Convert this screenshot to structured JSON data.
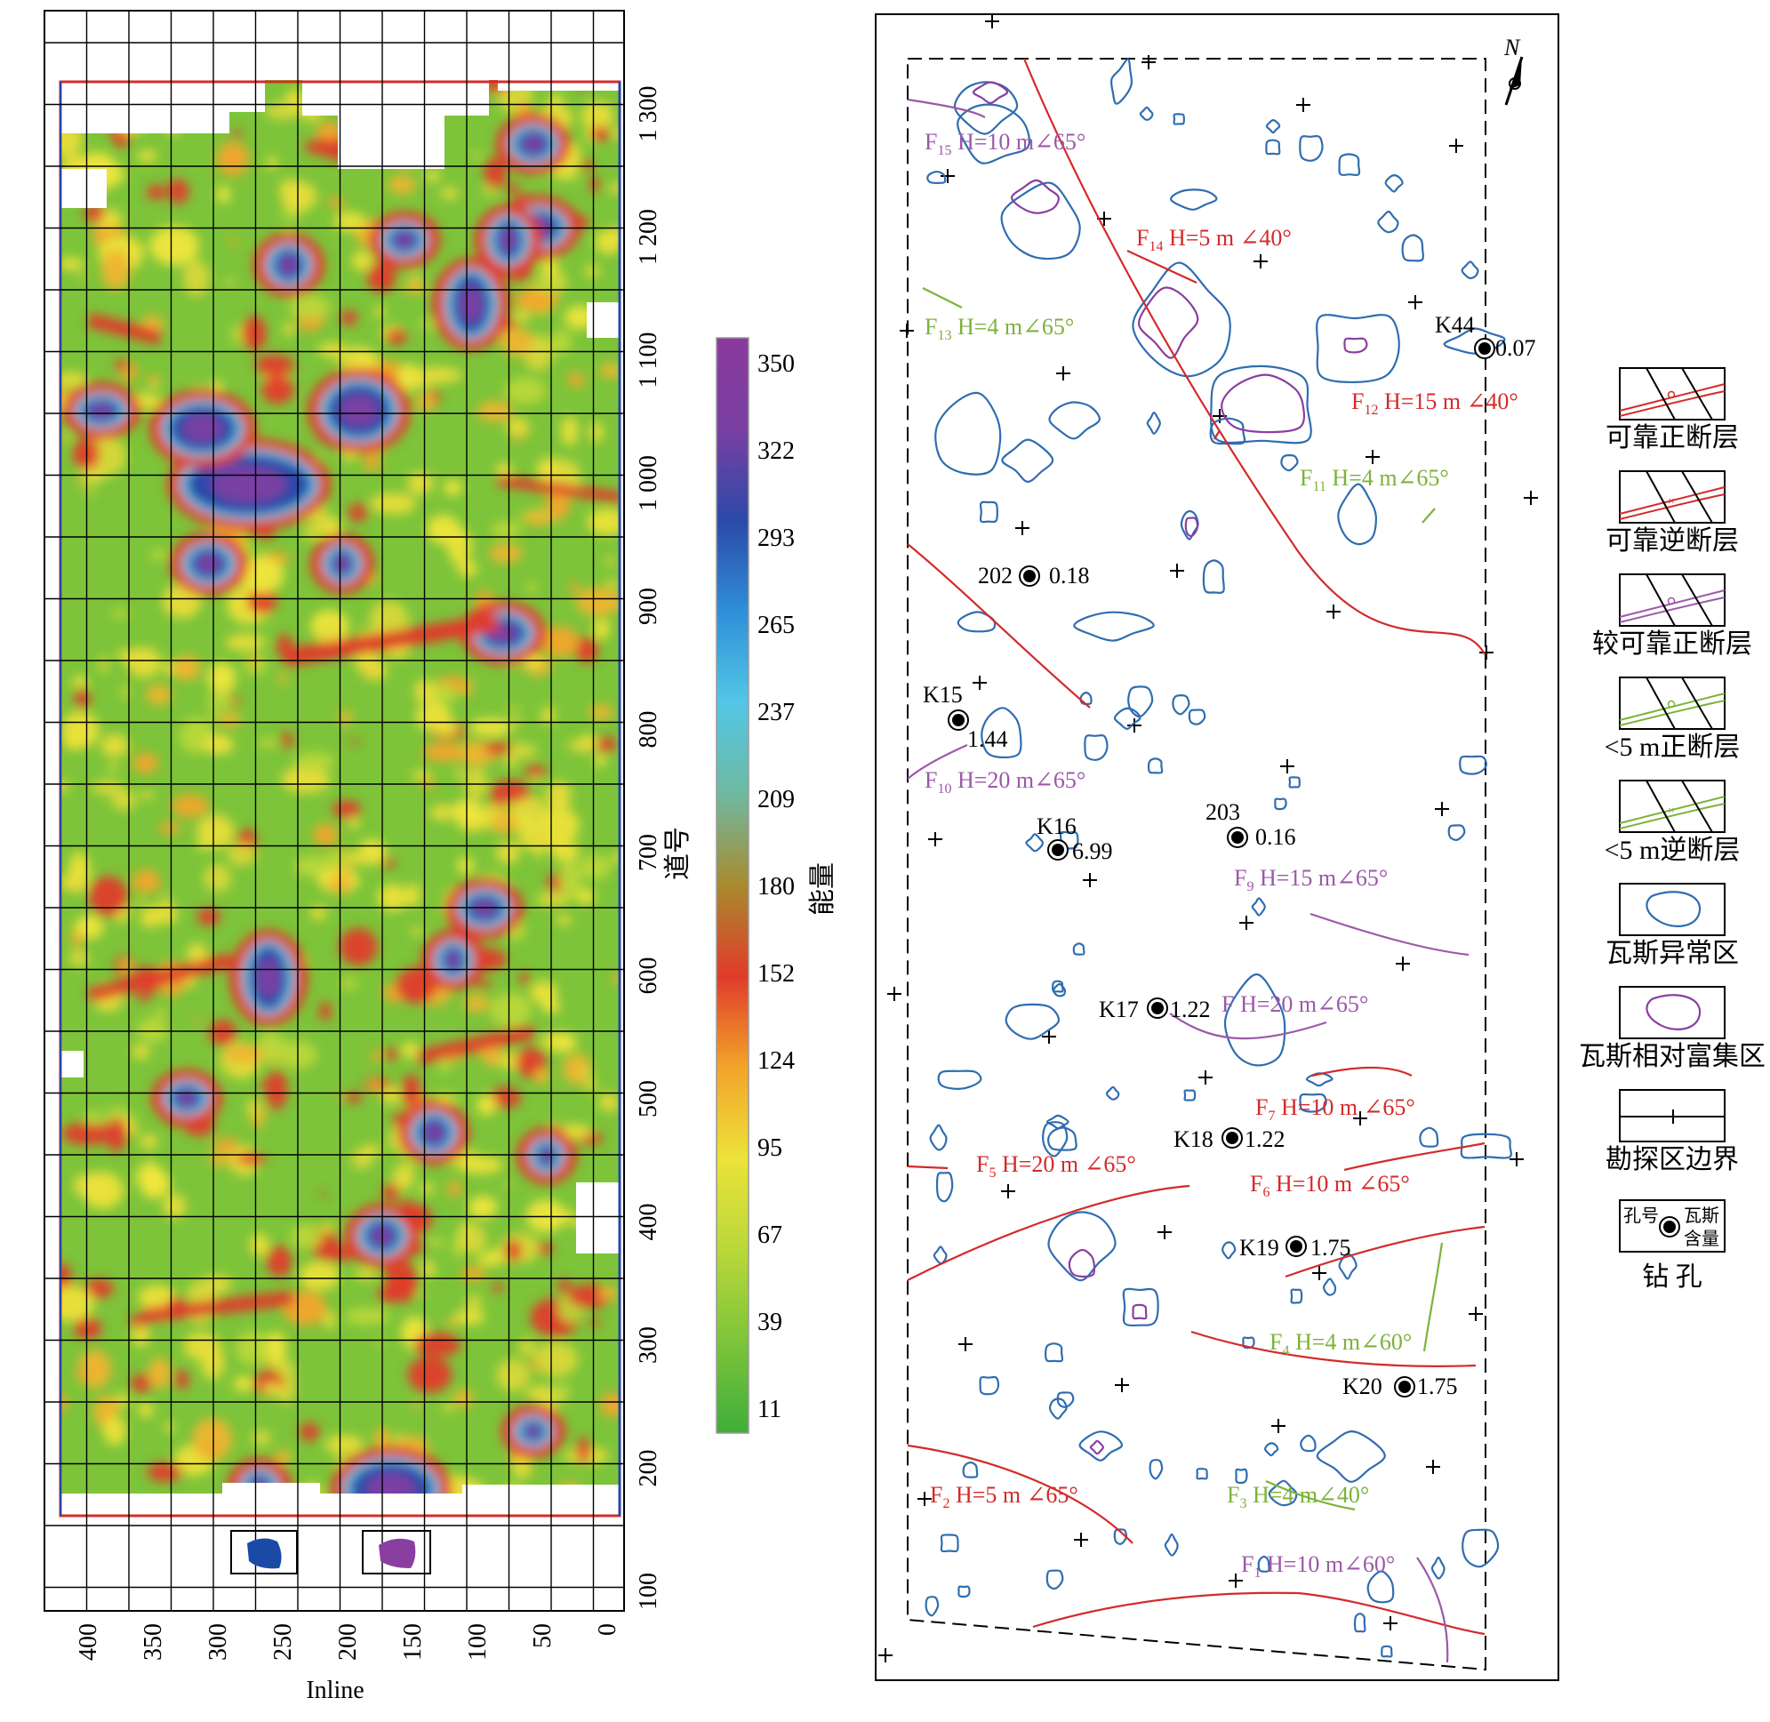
{
  "left_map": {
    "x_axis_label": "Inline",
    "y_axis_label": "道号",
    "x_ticks": [
      "400",
      "350",
      "300",
      "250",
      "200",
      "150",
      "100",
      "50",
      "0"
    ],
    "y_ticks": [
      "1 300",
      "1 200",
      "1 100",
      "1 000",
      "900",
      "800",
      "700",
      "600",
      "500",
      "400",
      "300",
      "200",
      "100"
    ],
    "colors": {
      "boundary_red": "#d62b2b",
      "boundary_blue": "#2846a6",
      "cluster_blue": "#1a4aa6",
      "cluster_purple": "#8a3fa0"
    }
  },
  "colorbar": {
    "title": "能量",
    "ticks": [
      "350",
      "322",
      "293",
      "265",
      "237",
      "209",
      "180",
      "152",
      "124",
      "95",
      "67",
      "39",
      "11"
    ],
    "gradient": [
      "#8b3a9c",
      "#7a3fa3",
      "#2b4aa8",
      "#2f8fd8",
      "#53c7e6",
      "#6fb9a0",
      "#a98a2e",
      "#e03b2a",
      "#f2a52a",
      "#ece23a",
      "#b9d83a",
      "#7dc43a",
      "#3fae3a"
    ]
  },
  "right_map": {
    "north_label": "N",
    "faults": [
      {
        "id": "F15",
        "name": "F",
        "sub": "15",
        "desc": "H=10 m∠65°",
        "color": "#9b59a8"
      },
      {
        "id": "F14",
        "name": "F",
        "sub": "14",
        "desc": "H=5 m  ∠40°",
        "color": "#d42a2a"
      },
      {
        "id": "F13",
        "name": "F",
        "sub": "13",
        "desc": "H=4 m∠65°",
        "color": "#7bb33a"
      },
      {
        "id": "F12",
        "name": "F",
        "sub": "12",
        "desc": "H=15 m  ∠40°",
        "color": "#d42a2a"
      },
      {
        "id": "F11",
        "name": "F",
        "sub": "11",
        "desc": "H=4 m∠65°",
        "color": "#7bb33a"
      },
      {
        "id": "F10",
        "name": "F",
        "sub": "10",
        "desc": "H=20 m∠65°",
        "color": "#9b59a8"
      },
      {
        "id": "F9",
        "name": "F",
        "sub": "9",
        "desc": "H=15 m∠65°",
        "color": "#9b59a8"
      },
      {
        "id": "F8",
        "name": "F",
        "sub": "",
        "desc": "H=20 m∠65°",
        "color": "#9b59a8"
      },
      {
        "id": "F7",
        "name": "F",
        "sub": "7",
        "desc": "H=10 m  ∠65°",
        "color": "#d42a2a"
      },
      {
        "id": "F5",
        "name": "F",
        "sub": "5",
        "desc": "H=20 m  ∠65°",
        "color": "#d42a2a"
      },
      {
        "id": "F6",
        "name": "F",
        "sub": "6",
        "desc": "H=10 m  ∠65°",
        "color": "#d42a2a"
      },
      {
        "id": "F4",
        "name": "F",
        "sub": "4",
        "desc": "H=4 m∠60°",
        "color": "#7bb33a"
      },
      {
        "id": "F2",
        "name": "F",
        "sub": "2",
        "desc": "H=5 m  ∠65°",
        "color": "#d42a2a"
      },
      {
        "id": "F3",
        "name": "F",
        "sub": "3",
        "desc": "H=4 m∠40°",
        "color": "#7bb33a"
      },
      {
        "id": "F1",
        "name": "F",
        "sub": "1",
        "desc": "H=10 m∠60°",
        "color": "#9b59a8"
      }
    ],
    "boreholes": [
      {
        "id": "K44",
        "value": "0.07"
      },
      {
        "id": "202",
        "value": "0.18"
      },
      {
        "id": "K15",
        "value": "1.44"
      },
      {
        "id": "K16",
        "value": "6.99"
      },
      {
        "id": "203",
        "value": "0.16"
      },
      {
        "id": "K17",
        "value": "1.22"
      },
      {
        "id": "K18",
        "value": "1.22"
      },
      {
        "id": "K19",
        "value": "1.75"
      },
      {
        "id": "K20",
        "value": "1.75"
      }
    ],
    "colors": {
      "gas_anomaly": "#2f6db0",
      "gas_rich": "#8a3fa0"
    }
  },
  "legend": {
    "items": [
      {
        "label": "可靠正断层",
        "kind": "fault",
        "color": "#d42a2a",
        "symbol": "o"
      },
      {
        "label": "可靠逆断层",
        "kind": "fault",
        "color": "#d42a2a",
        "symbol": "x"
      },
      {
        "label": "较可靠正断层",
        "kind": "fault",
        "color": "#9b59a8",
        "symbol": "o"
      },
      {
        "label": "<5 m正断层",
        "kind": "fault",
        "color": "#7bb33a",
        "symbol": "o"
      },
      {
        "label": "<5 m逆断层",
        "kind": "fault",
        "color": "#7bb33a",
        "symbol": "x"
      },
      {
        "label": "瓦斯异常区",
        "kind": "area",
        "color": "#2f6db0"
      },
      {
        "label": "瓦斯相对富集区",
        "kind": "area",
        "color": "#8a3fa0"
      },
      {
        "label": "勘探区边界",
        "kind": "boundary",
        "color": "#000000"
      }
    ],
    "borehole": {
      "hole_label": "孔号",
      "gas_label_1": "瓦斯",
      "gas_label_2": "含量",
      "caption": "钻  孔"
    }
  }
}
